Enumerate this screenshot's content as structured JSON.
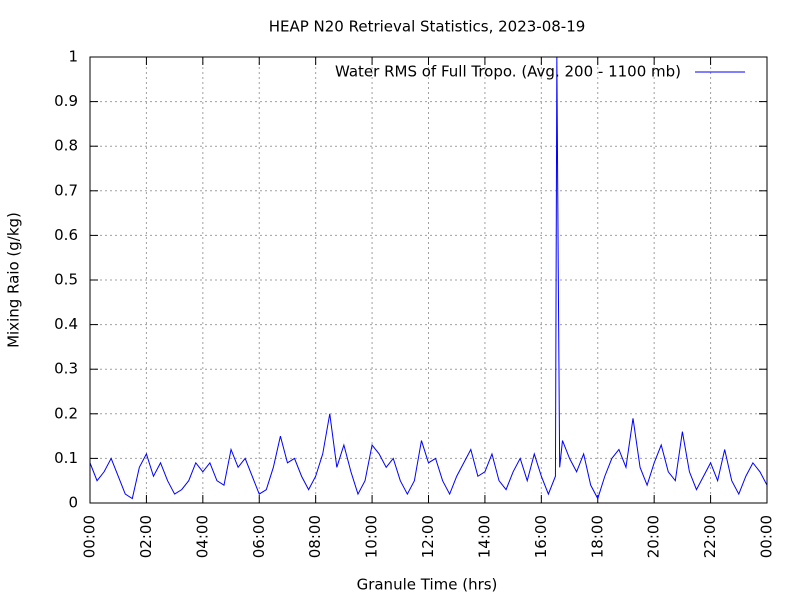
{
  "chart_data": {
    "type": "line",
    "title": "HEAP N20 Retrieval Statistics, 2023-08-19",
    "x_label": "Granule Time (hrs)",
    "y_label": "Mixing Raio (g/kg)",
    "x": [
      0,
      0.25,
      0.5,
      0.75,
      1,
      1.25,
      1.5,
      1.75,
      2,
      2.25,
      2.5,
      2.75,
      3,
      3.25,
      3.5,
      3.75,
      4,
      4.25,
      4.5,
      4.75,
      5,
      5.25,
      5.5,
      5.75,
      6,
      6.25,
      6.5,
      6.75,
      7,
      7.25,
      7.5,
      7.75,
      8,
      8.25,
      8.5,
      8.75,
      9,
      9.25,
      9.5,
      9.75,
      10,
      10.25,
      10.5,
      10.75,
      11,
      11.25,
      11.5,
      11.75,
      12,
      12.25,
      12.5,
      12.75,
      13,
      13.25,
      13.5,
      13.75,
      14,
      14.25,
      14.5,
      14.75,
      15,
      15.25,
      15.5,
      15.75,
      16,
      16.25,
      16.5,
      16.55,
      16.6,
      16.65,
      16.75,
      17,
      17.25,
      17.5,
      17.75,
      18,
      18.25,
      18.5,
      18.75,
      19,
      19.25,
      19.5,
      19.75,
      20,
      20.25,
      20.5,
      20.75,
      21,
      21.25,
      21.5,
      21.75,
      22,
      22.25,
      22.5,
      22.75,
      23,
      23.25,
      23.5,
      23.75,
      24
    ],
    "series": [
      {
        "name": "Water RMS of Full Tropo. (Avg. 200 - 1100 mb)",
        "color": "#0000ff",
        "values": [
          0.09,
          0.05,
          0.07,
          0.1,
          0.06,
          0.02,
          0.01,
          0.08,
          0.11,
          0.06,
          0.09,
          0.05,
          0.02,
          0.03,
          0.05,
          0.09,
          0.07,
          0.09,
          0.05,
          0.04,
          0.12,
          0.08,
          0.1,
          0.06,
          0.02,
          0.03,
          0.08,
          0.15,
          0.09,
          0.1,
          0.06,
          0.03,
          0.06,
          0.11,
          0.2,
          0.08,
          0.13,
          0.07,
          0.02,
          0.05,
          0.13,
          0.11,
          0.08,
          0.1,
          0.05,
          0.02,
          0.05,
          0.14,
          0.09,
          0.1,
          0.05,
          0.02,
          0.06,
          0.09,
          0.12,
          0.06,
          0.07,
          0.11,
          0.05,
          0.03,
          0.07,
          0.1,
          0.05,
          0.11,
          0.06,
          0.02,
          0.06,
          1.0,
          0.52,
          0.08,
          0.14,
          0.1,
          0.07,
          0.11,
          0.04,
          0.01,
          0.06,
          0.1,
          0.12,
          0.08,
          0.19,
          0.08,
          0.04,
          0.09,
          0.13,
          0.07,
          0.05,
          0.16,
          0.07,
          0.03,
          0.06,
          0.09,
          0.05,
          0.12,
          0.05,
          0.02,
          0.06,
          0.09,
          0.07,
          0.04
        ]
      }
    ],
    "xlim": [
      0,
      24
    ],
    "xticks": [
      {
        "value": 0,
        "label": "00:00"
      },
      {
        "value": 2,
        "label": "02:00"
      },
      {
        "value": 4,
        "label": "04:00"
      },
      {
        "value": 6,
        "label": "06:00"
      },
      {
        "value": 8,
        "label": "08:00"
      },
      {
        "value": 10,
        "label": "10:00"
      },
      {
        "value": 12,
        "label": "12:00"
      },
      {
        "value": 14,
        "label": "14:00"
      },
      {
        "value": 16,
        "label": "16:00"
      },
      {
        "value": 18,
        "label": "18:00"
      },
      {
        "value": 20,
        "label": "20:00"
      },
      {
        "value": 22,
        "label": "22:00"
      },
      {
        "value": 24,
        "label": "00:00"
      }
    ],
    "ylim": [
      0,
      1
    ],
    "yticks": [
      0,
      0.1,
      0.2,
      0.3,
      0.4,
      0.5,
      0.6,
      0.7,
      0.8,
      0.9,
      1
    ],
    "grid": true,
    "legend": "top-right"
  }
}
